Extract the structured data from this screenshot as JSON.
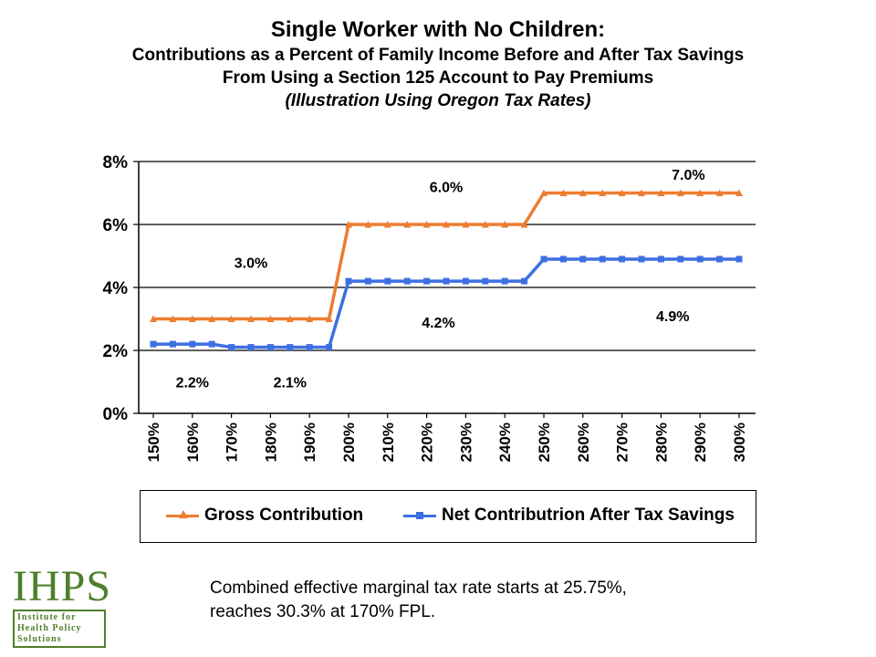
{
  "title": {
    "line1": "Single Worker with No Children:",
    "line2": "Contributions as a Percent of Family Income Before and After Tax Savings",
    "line3": "From Using a Section 125 Account to Pay Premiums",
    "line4": "(Illustration Using Oregon Tax Rates)"
  },
  "colors": {
    "gross": "#ED7D31",
    "net": "#3D6FE0",
    "grid": "#000000"
  },
  "chart_data": {
    "type": "line",
    "title": "",
    "xlabel": "",
    "ylabel": "",
    "ylim": [
      0,
      8
    ],
    "yticks": [
      "0%",
      "2%",
      "4%",
      "6%",
      "8%"
    ],
    "grid": true,
    "legend_position": "bottom",
    "categories": [
      "150%",
      "160%",
      "170%",
      "180%",
      "190%",
      "200%",
      "210%",
      "220%",
      "230%",
      "240%",
      "250%",
      "260%",
      "270%",
      "280%",
      "290%",
      "300%"
    ],
    "x": [
      150,
      155,
      160,
      165,
      170,
      175,
      180,
      185,
      190,
      195,
      200,
      205,
      210,
      215,
      220,
      225,
      230,
      235,
      240,
      245,
      250,
      255,
      260,
      265,
      270,
      275,
      280,
      285,
      290,
      295,
      300
    ],
    "series": [
      {
        "name": "Gross Contribution",
        "values": [
          3.0,
          3.0,
          3.0,
          3.0,
          3.0,
          3.0,
          3.0,
          3.0,
          3.0,
          3.0,
          6.0,
          6.0,
          6.0,
          6.0,
          6.0,
          6.0,
          6.0,
          6.0,
          6.0,
          6.0,
          7.0,
          7.0,
          7.0,
          7.0,
          7.0,
          7.0,
          7.0,
          7.0,
          7.0,
          7.0,
          7.0
        ]
      },
      {
        "name": "Net Contributrion After Tax Savings",
        "values": [
          2.2,
          2.2,
          2.2,
          2.2,
          2.1,
          2.1,
          2.1,
          2.1,
          2.1,
          2.1,
          4.2,
          4.2,
          4.2,
          4.2,
          4.2,
          4.2,
          4.2,
          4.2,
          4.2,
          4.2,
          4.9,
          4.9,
          4.9,
          4.9,
          4.9,
          4.9,
          4.9,
          4.9,
          4.9,
          4.9,
          4.9
        ]
      }
    ],
    "annotations": [
      {
        "text": "3.0%",
        "x": 175,
        "y": 4.8
      },
      {
        "text": "6.0%",
        "x": 225,
        "y": 7.2
      },
      {
        "text": "7.0%",
        "x": 287,
        "y": 7.6
      },
      {
        "text": "4.2%",
        "x": 223,
        "y": 2.9
      },
      {
        "text": "4.9%",
        "x": 283,
        "y": 3.1
      },
      {
        "text": "2.2%",
        "x": 160,
        "y": 1.0
      },
      {
        "text": "2.1%",
        "x": 185,
        "y": 1.0
      }
    ]
  },
  "footnote": {
    "line1": "Combined effective marginal tax rate starts at 25.75%,",
    "line2": "reaches 30.3% at 170% FPL."
  },
  "logo": {
    "main": "IHPS",
    "line1": "Institute for",
    "line2": "Health Policy",
    "line3": "Solutions"
  }
}
